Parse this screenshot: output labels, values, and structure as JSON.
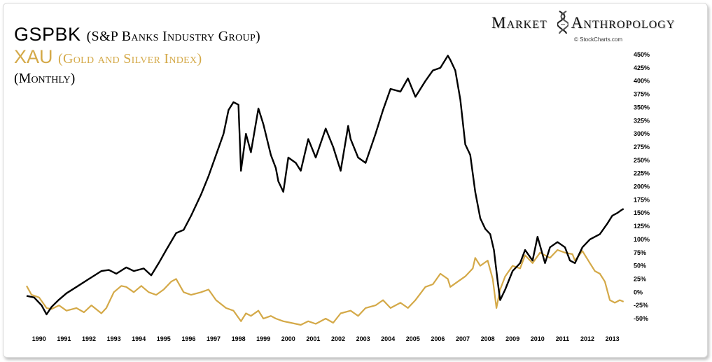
{
  "header": {
    "line1_main": "GSPBK",
    "line1_sub": "(S&P Banks Industry Group)",
    "line2_main": "XAU",
    "line2_sub": "(Gold and Silver Index)",
    "line3": "(Monthly)"
  },
  "brand": {
    "word1": "Market",
    "word2": "Anthropology",
    "source": "© StockCharts.com"
  },
  "colors": {
    "gspbk": "#000000",
    "xau": "#d4a948",
    "frame": "#d9d9d9"
  },
  "chart_data": {
    "type": "line",
    "title": "",
    "xlabel": "",
    "ylabel": "",
    "xlim": [
      1990,
      2014.1
    ],
    "ylim": [
      -50,
      450
    ],
    "x_tick_labels": [
      "1990",
      "1991",
      "1992",
      "1993",
      "1994",
      "1995",
      "1996",
      "1997",
      "1998",
      "1999",
      "2000",
      "2001",
      "2002",
      "2003",
      "2004",
      "2005",
      "2006",
      "2007",
      "2008",
      "2009",
      "2010",
      "2011",
      "2012",
      "2013"
    ],
    "y_tick_values": [
      -50,
      -25,
      0,
      25,
      50,
      75,
      100,
      125,
      150,
      175,
      200,
      225,
      250,
      275,
      300,
      325,
      350,
      375,
      400,
      425,
      450
    ],
    "y_tick_labels": [
      "-50%",
      "-25%",
      "0%",
      "25%",
      "50%",
      "75%",
      "100%",
      "125%",
      "150%",
      "175%",
      "200%",
      "225%",
      "250%",
      "275%",
      "300%",
      "325%",
      "350%",
      "375%",
      "400%",
      "425%",
      "450%"
    ],
    "y_axis_side": "right",
    "grid": false,
    "legend": "none",
    "series": [
      {
        "name": "GSPBK",
        "x": [
          1990.0,
          1990.3,
          1990.6,
          1990.8,
          1991.0,
          1991.3,
          1991.6,
          1992.0,
          1992.5,
          1993.0,
          1993.3,
          1993.6,
          1994.0,
          1994.3,
          1994.7,
          1995.0,
          1995.3,
          1995.6,
          1996.0,
          1996.3,
          1996.6,
          1997.0,
          1997.3,
          1997.6,
          1997.9,
          1998.1,
          1998.3,
          1998.5,
          1998.6,
          1998.8,
          1999.0,
          1999.3,
          1999.5,
          1999.8,
          2000.0,
          2000.1,
          2000.3,
          2000.5,
          2000.8,
          2001.0,
          2001.3,
          2001.6,
          2002.0,
          2002.3,
          2002.6,
          2002.9,
          2003.0,
          2003.3,
          2003.6,
          2004.0,
          2004.3,
          2004.6,
          2005.0,
          2005.3,
          2005.6,
          2006.0,
          2006.3,
          2006.6,
          2006.9,
          2007.0,
          2007.2,
          2007.4,
          2007.6,
          2007.8,
          2008.0,
          2008.2,
          2008.4,
          2008.6,
          2008.75,
          2008.9,
          2009.0,
          2009.2,
          2009.5,
          2009.8,
          2010.0,
          2010.3,
          2010.5,
          2010.8,
          2011.0,
          2011.3,
          2011.6,
          2011.8,
          2012.0,
          2012.3,
          2012.6,
          2013.0,
          2013.3,
          2013.5,
          2013.7,
          2013.85,
          2013.95
        ],
        "values": [
          -7,
          -10,
          -25,
          -42,
          -28,
          -14,
          -2,
          10,
          25,
          40,
          42,
          35,
          47,
          40,
          45,
          32,
          55,
          80,
          112,
          118,
          145,
          185,
          220,
          260,
          300,
          345,
          360,
          355,
          230,
          300,
          265,
          348,
          318,
          260,
          235,
          210,
          190,
          255,
          245,
          230,
          290,
          255,
          310,
          275,
          230,
          315,
          290,
          255,
          245,
          300,
          345,
          385,
          380,
          405,
          370,
          400,
          420,
          425,
          448,
          440,
          420,
          365,
          280,
          260,
          190,
          140,
          120,
          110,
          80,
          20,
          -15,
          5,
          40,
          55,
          80,
          60,
          105,
          55,
          85,
          95,
          85,
          60,
          55,
          85,
          100,
          110,
          130,
          145,
          150,
          155,
          158
        ]
      },
      {
        "name": "XAU",
        "x": [
          1990.0,
          1990.2,
          1990.5,
          1990.8,
          1991.0,
          1991.3,
          1991.6,
          1992.0,
          1992.3,
          1992.6,
          1993.0,
          1993.2,
          1993.5,
          1993.8,
          1994.0,
          1994.3,
          1994.6,
          1994.9,
          1995.2,
          1995.5,
          1995.8,
          1996.0,
          1996.3,
          1996.6,
          1997.0,
          1997.3,
          1997.6,
          1998.0,
          1998.3,
          1998.6,
          1998.8,
          1999.0,
          1999.3,
          1999.5,
          1999.8,
          2000.0,
          2000.3,
          2000.6,
          2001.0,
          2001.3,
          2001.6,
          2002.0,
          2002.3,
          2002.6,
          2003.0,
          2003.3,
          2003.6,
          2004.0,
          2004.3,
          2004.6,
          2005.0,
          2005.3,
          2005.6,
          2006.0,
          2006.3,
          2006.6,
          2006.9,
          2007.0,
          2007.3,
          2007.6,
          2007.9,
          2008.0,
          2008.2,
          2008.5,
          2008.7,
          2008.85,
          2009.0,
          2009.2,
          2009.5,
          2009.8,
          2010.0,
          2010.3,
          2010.6,
          2011.0,
          2011.3,
          2011.6,
          2011.9,
          2012.0,
          2012.3,
          2012.6,
          2012.8,
          2013.0,
          2013.2,
          2013.4,
          2013.6,
          2013.8,
          2013.95
        ],
        "values": [
          12,
          -5,
          -10,
          -30,
          -32,
          -25,
          -35,
          -30,
          -38,
          -25,
          -40,
          -30,
          0,
          12,
          10,
          0,
          12,
          0,
          -5,
          5,
          20,
          25,
          0,
          -5,
          0,
          5,
          -15,
          -30,
          -35,
          -55,
          -40,
          -45,
          -35,
          -50,
          -45,
          -50,
          -55,
          -58,
          -62,
          -55,
          -60,
          -50,
          -58,
          -40,
          -35,
          -45,
          -30,
          -25,
          -15,
          -30,
          -20,
          -30,
          -15,
          10,
          15,
          35,
          25,
          10,
          20,
          30,
          45,
          65,
          50,
          60,
          25,
          -30,
          5,
          30,
          50,
          45,
          70,
          55,
          75,
          65,
          80,
          75,
          72,
          60,
          78,
          55,
          40,
          35,
          20,
          -15,
          -20,
          -15,
          -18
        ]
      }
    ]
  }
}
